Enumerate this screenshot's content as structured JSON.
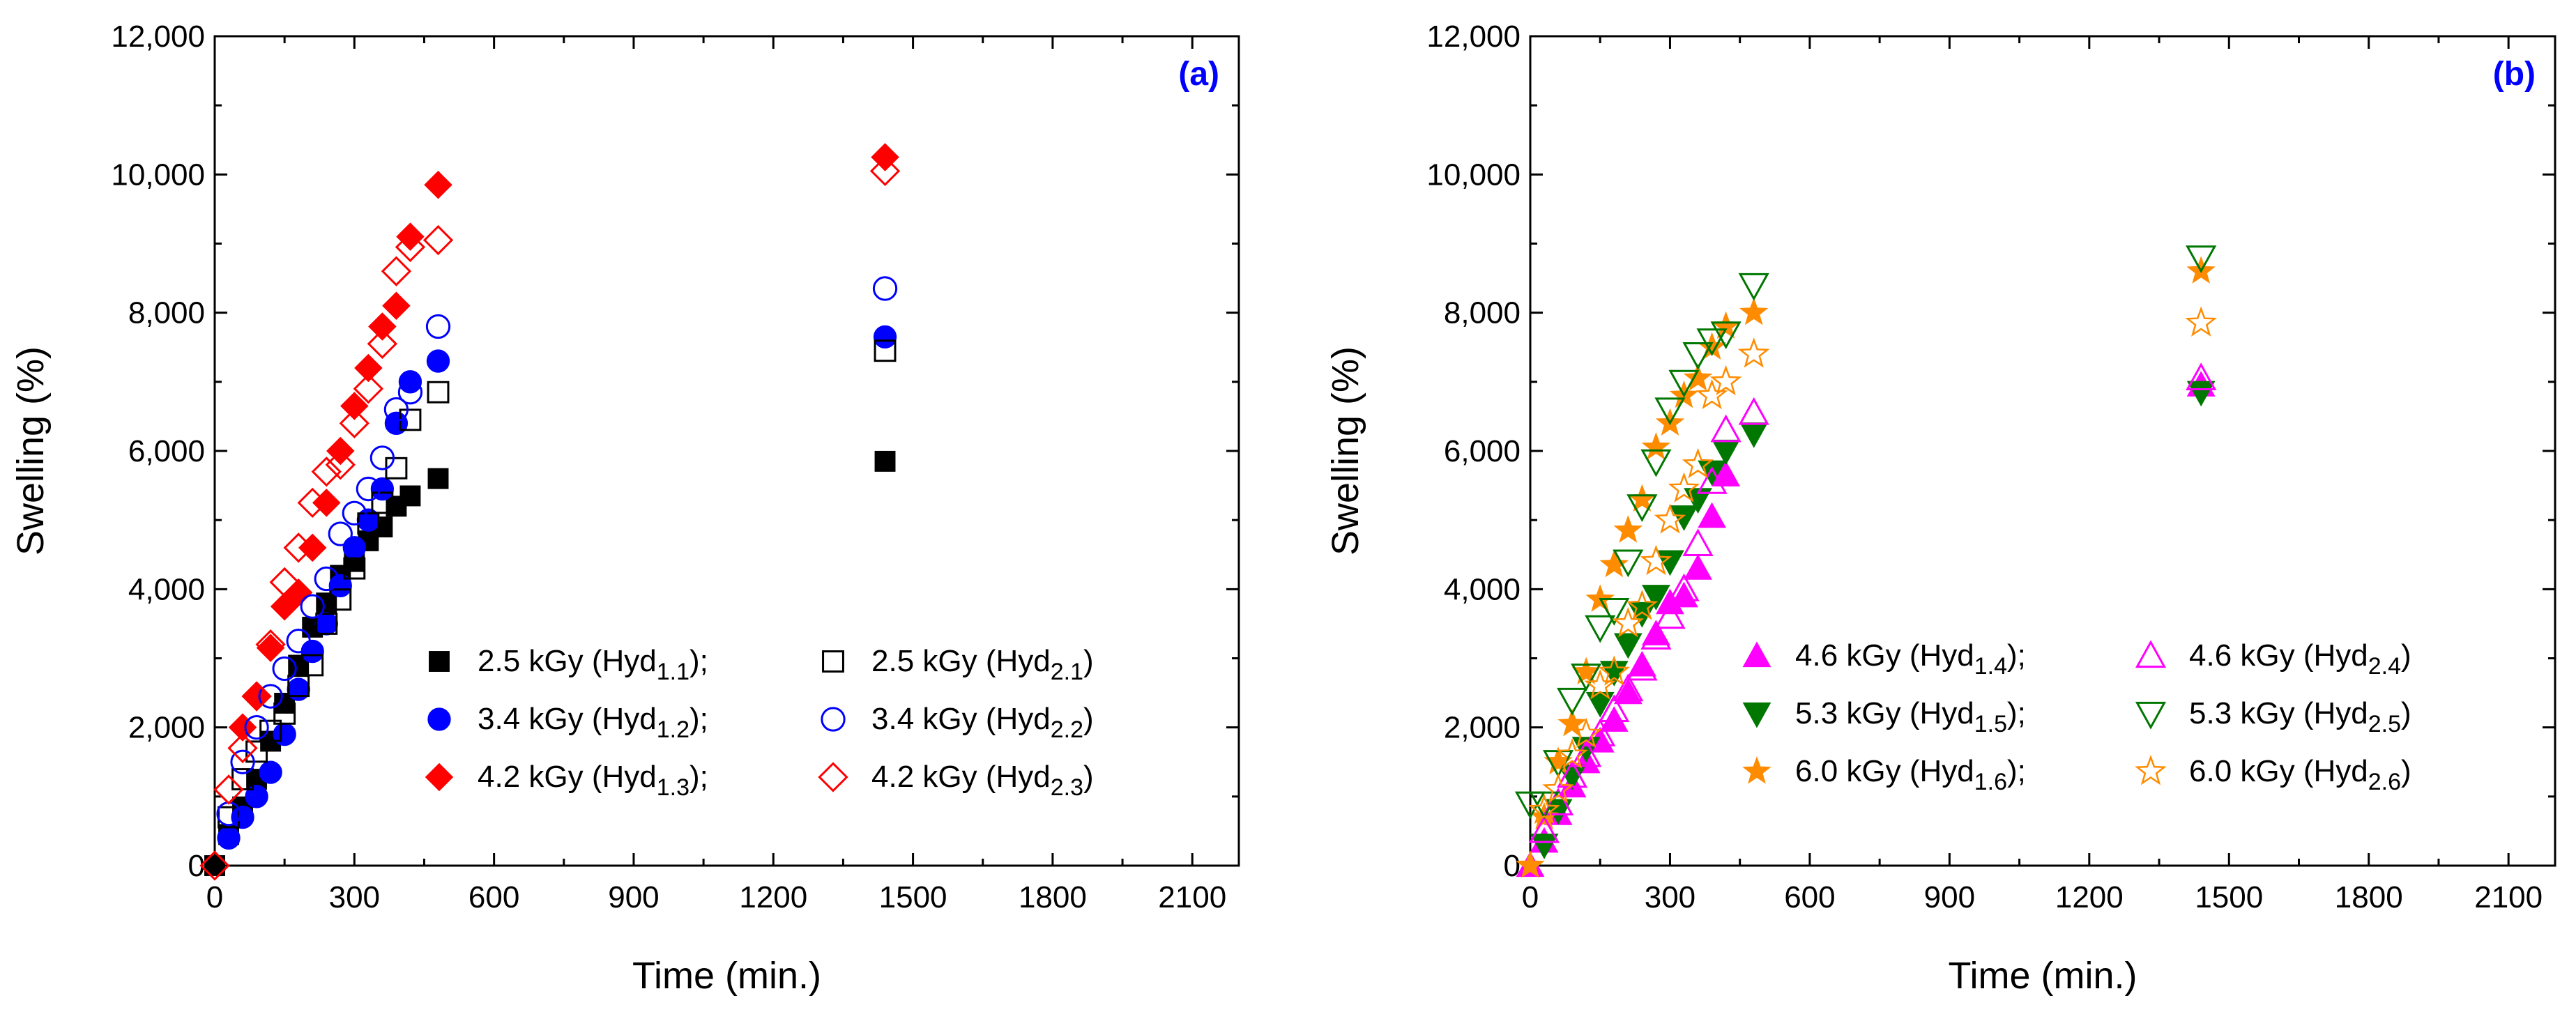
{
  "colors": {
    "black": "#000000",
    "blue": "#0000ff",
    "red": "#ff0000",
    "magenta": "#ff00ff",
    "green": "#007700",
    "orange": "#ff8c00",
    "panel_label": "#0000ff"
  },
  "chart_data": [
    {
      "type": "scatter",
      "panel_label": "(a)",
      "xlabel": "Time (min.)",
      "ylabel": "Swelling (%)",
      "xlim": [
        0,
        2200
      ],
      "ylim": [
        0,
        12000
      ],
      "xticks": [
        "0",
        "300",
        "600",
        "900",
        "1200",
        "1500",
        "1800",
        "2100"
      ],
      "yticks": [
        "0",
        "2,000",
        "4,000",
        "6,000",
        "8,000",
        "10,000",
        "12,000"
      ],
      "legend_position": "bottom-center",
      "series": [
        {
          "name": "2.5 kGy (Hyd1.1);",
          "label_pre": "2.5 kGy (Hyd",
          "label_sub": "1.1",
          "label_post": ");",
          "marker": "square",
          "filled": true,
          "color": "#000000",
          "x": [
            0,
            30,
            60,
            90,
            120,
            150,
            180,
            210,
            240,
            270,
            300,
            330,
            360,
            390,
            420,
            480,
            1440
          ],
          "y": [
            0,
            450,
            850,
            1250,
            1800,
            2350,
            2900,
            3450,
            3800,
            4200,
            4400,
            4700,
            4900,
            5200,
            5350,
            5600,
            5850
          ]
        },
        {
          "name": "3.4 kGy (Hyd1.2);",
          "label_pre": "3.4 kGy (Hyd",
          "label_sub": "1.2",
          "label_post": ");",
          "marker": "circle",
          "filled": true,
          "color": "#0000ff",
          "x": [
            30,
            60,
            90,
            120,
            150,
            180,
            210,
            240,
            270,
            300,
            330,
            360,
            390,
            420,
            480,
            1440
          ],
          "y": [
            400,
            700,
            1000,
            1350,
            1900,
            2550,
            3100,
            3500,
            4050,
            4600,
            5000,
            5450,
            6400,
            7000,
            7300,
            7650
          ]
        },
        {
          "name": "4.2 kGy (Hyd1.3);",
          "label_pre": "4.2 kGy (Hyd",
          "label_sub": "1.3",
          "label_post": ");",
          "marker": "diamond",
          "filled": true,
          "color": "#ff0000",
          "x": [
            60,
            90,
            120,
            150,
            180,
            210,
            240,
            270,
            300,
            330,
            360,
            390,
            420,
            480,
            1440
          ],
          "y": [
            2000,
            2450,
            3150,
            3750,
            3950,
            4600,
            5250,
            6000,
            6650,
            7200,
            7800,
            8100,
            9100,
            9850,
            10250
          ]
        },
        {
          "name": "2.5 kGy (Hyd2.1)",
          "label_pre": "2.5 kGy (Hyd",
          "label_sub": "2.1",
          "label_post": ")",
          "marker": "square",
          "filled": false,
          "color": "#000000",
          "x": [
            30,
            60,
            90,
            120,
            150,
            180,
            210,
            240,
            270,
            300,
            330,
            360,
            390,
            420,
            480,
            1440
          ],
          "y": [
            700,
            1250,
            1650,
            1950,
            2200,
            2600,
            2900,
            3500,
            3850,
            4300,
            4950,
            5250,
            5750,
            6450,
            6850,
            7450
          ]
        },
        {
          "name": "3.4 kGy (Hyd2.2)",
          "label_pre": "3.4 kGy (Hyd",
          "label_sub": "2.2",
          "label_post": ")",
          "marker": "circle",
          "filled": false,
          "color": "#0000ff",
          "x": [
            30,
            60,
            90,
            120,
            150,
            180,
            210,
            240,
            270,
            300,
            330,
            360,
            390,
            420,
            480,
            1440
          ],
          "y": [
            750,
            1500,
            2000,
            2450,
            2850,
            3250,
            3750,
            4150,
            4800,
            5100,
            5450,
            5900,
            6600,
            6850,
            7800,
            8350
          ]
        },
        {
          "name": "4.2 kGy (Hyd2.3)",
          "label_pre": "4.2 kGy (Hyd",
          "label_sub": "2.3",
          "label_post": ")",
          "marker": "diamond",
          "filled": false,
          "color": "#ff0000",
          "x": [
            0,
            30,
            60,
            90,
            120,
            150,
            180,
            210,
            240,
            270,
            300,
            330,
            360,
            390,
            420,
            480,
            1440
          ],
          "y": [
            0,
            1100,
            1700,
            2450,
            3200,
            4100,
            4600,
            5250,
            5700,
            5800,
            6400,
            6900,
            7550,
            8600,
            8950,
            9050,
            10050
          ]
        }
      ]
    },
    {
      "type": "scatter",
      "panel_label": "(b)",
      "xlabel": "Time (min.)",
      "ylabel": "Swelling (%)",
      "xlim": [
        0,
        2200
      ],
      "ylim": [
        0,
        12000
      ],
      "xticks": [
        "0",
        "300",
        "600",
        "900",
        "1200",
        "1500",
        "1800",
        "2100"
      ],
      "yticks": [
        "0",
        "2,000",
        "4,000",
        "6,000",
        "8,000",
        "10,000",
        "12,000"
      ],
      "legend_position": "bottom-center",
      "series": [
        {
          "name": "4.6 kGy (Hyd1.4);",
          "label_pre": "4.6 kGy (Hyd",
          "label_sub": "1.4",
          "label_post": ");",
          "marker": "triangle-up",
          "filled": true,
          "color": "#ff00ff",
          "x": [
            0,
            30,
            60,
            90,
            120,
            150,
            180,
            210,
            240,
            270,
            300,
            330,
            360,
            390,
            420,
            1440
          ],
          "y": [
            0,
            350,
            750,
            1150,
            1500,
            1800,
            2100,
            2500,
            2900,
            3350,
            3800,
            3900,
            4300,
            5050,
            5650,
            6950
          ]
        },
        {
          "name": "5.3 kGy (Hyd1.5);",
          "label_pre": "5.3 kGy (Hyd",
          "label_sub": "1.5",
          "label_post": ");",
          "marker": "triangle-down",
          "filled": true,
          "color": "#007700",
          "x": [
            30,
            60,
            90,
            120,
            150,
            180,
            210,
            240,
            270,
            300,
            330,
            360,
            390,
            420,
            480,
            1440
          ],
          "y": [
            300,
            800,
            1300,
            1700,
            2350,
            2800,
            3200,
            3650,
            3900,
            4400,
            5050,
            5300,
            5700,
            6000,
            6250,
            6850
          ]
        },
        {
          "name": "6.0 kGy (Hyd1.6);",
          "label_pre": "6.0 kGy (Hyd",
          "label_sub": "1.6",
          "label_post": ");",
          "marker": "star",
          "filled": true,
          "color": "#ff8c00",
          "x": [
            0,
            30,
            60,
            90,
            120,
            150,
            180,
            210,
            240,
            270,
            300,
            330,
            360,
            390,
            420,
            480,
            1440
          ],
          "y": [
            0,
            700,
            1500,
            2050,
            2800,
            3850,
            4350,
            4850,
            5300,
            6050,
            6400,
            6800,
            7050,
            7500,
            7800,
            8000,
            8600
          ]
        },
        {
          "name": "4.6 kGy (Hyd2.4)",
          "label_pre": "4.6 kGy (Hyd",
          "label_sub": "2.4",
          "label_post": ")",
          "marker": "triangle-up",
          "filled": false,
          "color": "#ff00ff",
          "x": [
            30,
            60,
            90,
            120,
            150,
            180,
            210,
            240,
            270,
            300,
            330,
            360,
            390,
            420,
            480,
            1440
          ],
          "y": [
            500,
            900,
            1300,
            1600,
            1900,
            2250,
            2550,
            2850,
            3300,
            3600,
            4000,
            4650,
            5550,
            6300,
            6550,
            7050
          ]
        },
        {
          "name": "5.3 kGy (Hyd2.5)",
          "label_pre": "5.3 kGy (Hyd",
          "label_sub": "2.5",
          "label_post": ")",
          "marker": "triangle-down",
          "filled": false,
          "color": "#007700",
          "x": [
            0,
            30,
            60,
            90,
            120,
            150,
            180,
            210,
            240,
            270,
            300,
            330,
            360,
            390,
            420,
            480,
            1440
          ],
          "y": [
            900,
            900,
            1500,
            2400,
            2750,
            3450,
            3700,
            4400,
            5200,
            5850,
            6600,
            7000,
            7400,
            7600,
            7700,
            8400,
            8800
          ]
        },
        {
          "name": "6.0 kGy (Hyd2.6)",
          "label_pre": "6.0 kGy (Hyd",
          "label_sub": "2.6",
          "label_post": ")",
          "marker": "star",
          "filled": false,
          "color": "#ff8c00",
          "x": [
            30,
            60,
            90,
            120,
            150,
            180,
            210,
            240,
            270,
            300,
            330,
            360,
            390,
            420,
            480,
            1440
          ],
          "y": [
            800,
            1100,
            1600,
            1900,
            2600,
            2800,
            3500,
            3750,
            4400,
            5000,
            5450,
            5800,
            6800,
            7000,
            7400,
            7850
          ]
        }
      ]
    }
  ]
}
